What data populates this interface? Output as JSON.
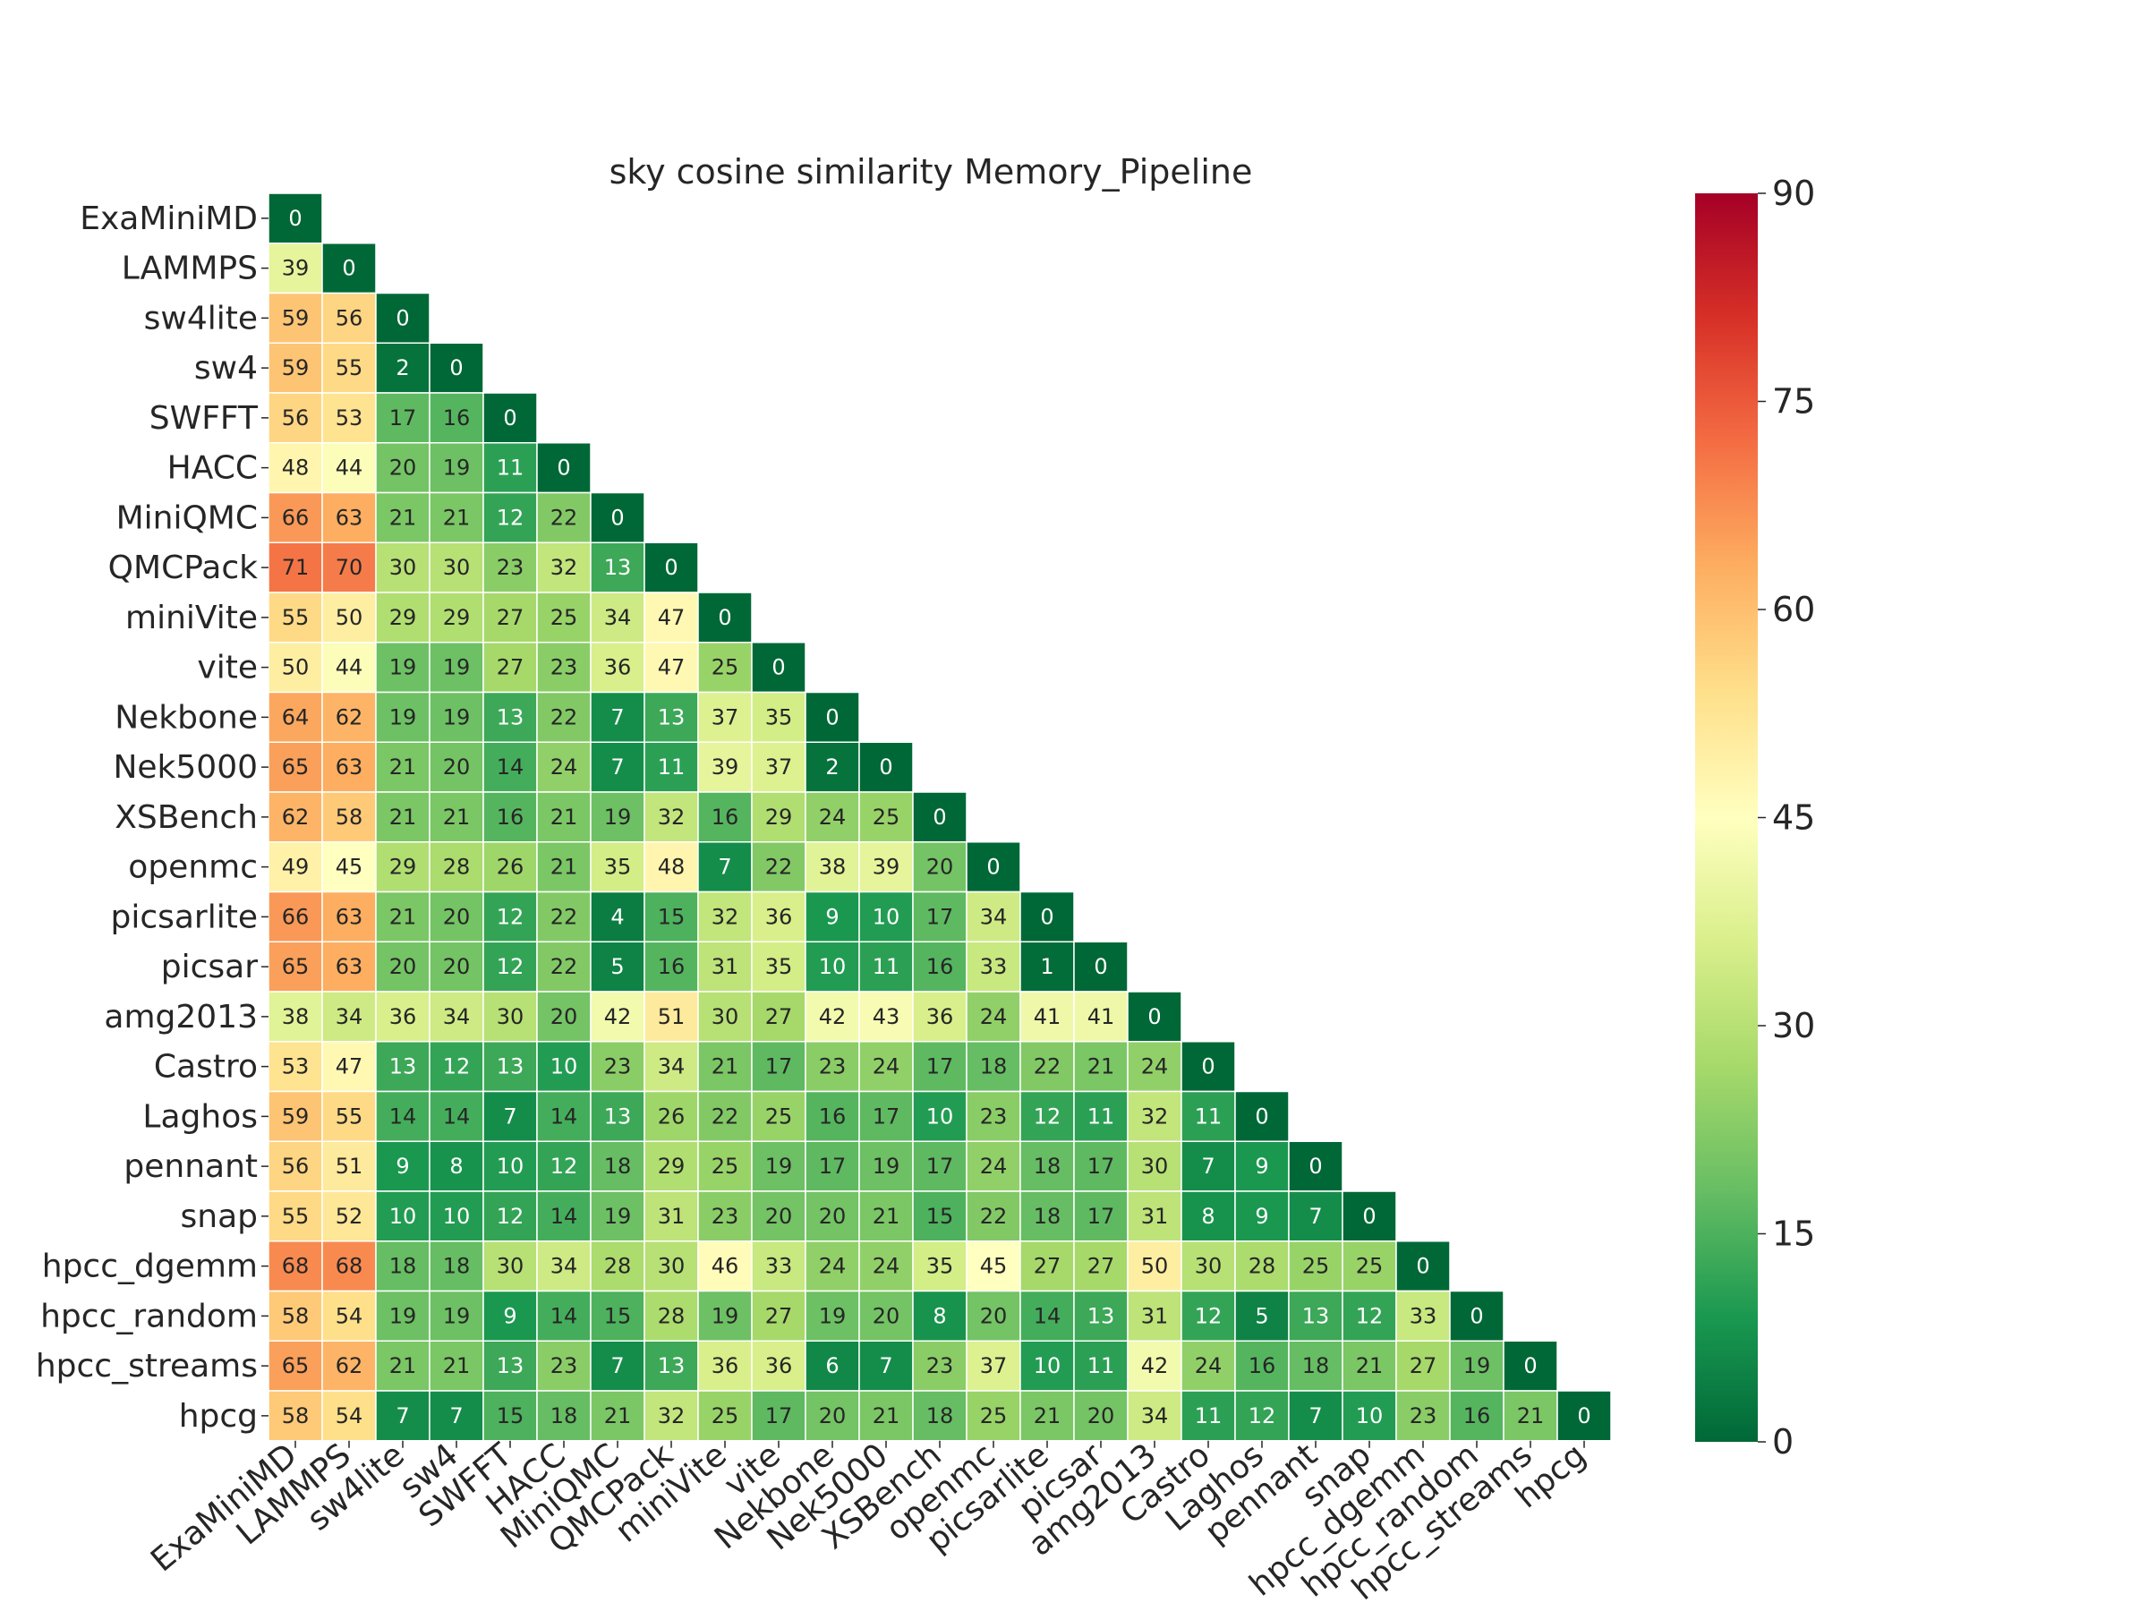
{
  "chart_data": {
    "type": "heatmap",
    "title": "sky cosine similarity Memory_Pipeline",
    "labels": [
      "ExaMiniMD",
      "LAMMPS",
      "sw4lite",
      "sw4",
      "SWFFT",
      "HACC",
      "MiniQMC",
      "QMCPack",
      "miniVite",
      "vite",
      "Nekbone",
      "Nek5000",
      "XSBench",
      "openmc",
      "picsarlite",
      "picsar",
      "amg2013",
      "Castro",
      "Laghos",
      "pennant",
      "snap",
      "hpcc_dgemm",
      "hpcc_random",
      "hpcc_streams",
      "hpcg"
    ],
    "values": [
      [
        0
      ],
      [
        39,
        0
      ],
      [
        59,
        56,
        0
      ],
      [
        59,
        55,
        2,
        0
      ],
      [
        56,
        53,
        17,
        16,
        0
      ],
      [
        48,
        44,
        20,
        19,
        11,
        0
      ],
      [
        66,
        63,
        21,
        21,
        12,
        22,
        0
      ],
      [
        71,
        70,
        30,
        30,
        23,
        32,
        13,
        0
      ],
      [
        55,
        50,
        29,
        29,
        27,
        25,
        34,
        47,
        0
      ],
      [
        50,
        44,
        19,
        19,
        27,
        23,
        36,
        47,
        25,
        0
      ],
      [
        64,
        62,
        19,
        19,
        13,
        22,
        7,
        13,
        37,
        35,
        0
      ],
      [
        65,
        63,
        21,
        20,
        14,
        24,
        7,
        11,
        39,
        37,
        2,
        0
      ],
      [
        62,
        58,
        21,
        21,
        16,
        21,
        19,
        32,
        16,
        29,
        24,
        25,
        0
      ],
      [
        49,
        45,
        29,
        28,
        26,
        21,
        35,
        48,
        7,
        22,
        38,
        39,
        20,
        0
      ],
      [
        66,
        63,
        21,
        20,
        12,
        22,
        4,
        15,
        32,
        36,
        9,
        10,
        17,
        34,
        0
      ],
      [
        65,
        63,
        20,
        20,
        12,
        22,
        5,
        16,
        31,
        35,
        10,
        11,
        16,
        33,
        1,
        0
      ],
      [
        38,
        34,
        36,
        34,
        30,
        20,
        42,
        51,
        30,
        27,
        42,
        43,
        36,
        24,
        41,
        41,
        0
      ],
      [
        53,
        47,
        13,
        12,
        13,
        10,
        23,
        34,
        21,
        17,
        23,
        24,
        17,
        18,
        22,
        21,
        24,
        0
      ],
      [
        59,
        55,
        14,
        14,
        7,
        14,
        13,
        26,
        22,
        25,
        16,
        17,
        10,
        23,
        12,
        11,
        32,
        11,
        0
      ],
      [
        56,
        51,
        9,
        8,
        10,
        12,
        18,
        29,
        25,
        19,
        17,
        19,
        17,
        24,
        18,
        17,
        30,
        7,
        9,
        0
      ],
      [
        55,
        52,
        10,
        10,
        12,
        14,
        19,
        31,
        23,
        20,
        20,
        21,
        15,
        22,
        18,
        17,
        31,
        8,
        9,
        7,
        0
      ],
      [
        68,
        68,
        18,
        18,
        30,
        34,
        28,
        30,
        46,
        33,
        24,
        24,
        35,
        45,
        27,
        27,
        50,
        30,
        28,
        25,
        25,
        0
      ],
      [
        58,
        54,
        19,
        19,
        9,
        14,
        15,
        28,
        19,
        27,
        19,
        20,
        8,
        20,
        14,
        13,
        31,
        12,
        5,
        13,
        12,
        33,
        0
      ],
      [
        65,
        62,
        21,
        21,
        13,
        23,
        7,
        13,
        36,
        36,
        6,
        7,
        23,
        37,
        10,
        11,
        42,
        24,
        16,
        18,
        21,
        27,
        19,
        0
      ],
      [
        58,
        54,
        7,
        7,
        15,
        18,
        21,
        32,
        25,
        17,
        20,
        21,
        18,
        25,
        21,
        20,
        34,
        11,
        12,
        7,
        10,
        23,
        16,
        21,
        0
      ]
    ],
    "vmin": 0,
    "vmax": 90,
    "colormap": "RdYlGn_r",
    "colorbar_ticks": [
      "0",
      "15",
      "30",
      "45",
      "60",
      "75",
      "90"
    ],
    "colors": {
      "low": "#006837",
      "mid": "#ffffbf",
      "high": "#a50026",
      "grid": "#ffffff",
      "text": "#262626"
    }
  }
}
